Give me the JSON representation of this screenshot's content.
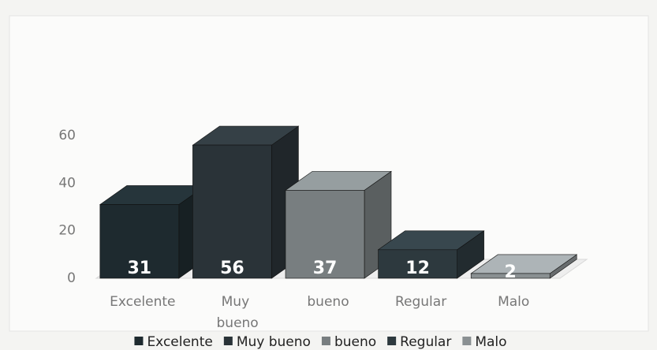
{
  "chart_data": {
    "type": "bar3d",
    "categories": [
      "Excelente",
      "Muy bueno",
      "bueno",
      "Regular",
      "Malo"
    ],
    "values": [
      31,
      56,
      37,
      12,
      2
    ],
    "colors": [
      "#1e2a2f",
      "#2a3338",
      "#787e80",
      "#2d393e",
      "#8a9092"
    ],
    "ylim": [
      0,
      60
    ],
    "yticks": [
      0,
      20,
      40,
      60
    ],
    "legend": "bottom"
  }
}
